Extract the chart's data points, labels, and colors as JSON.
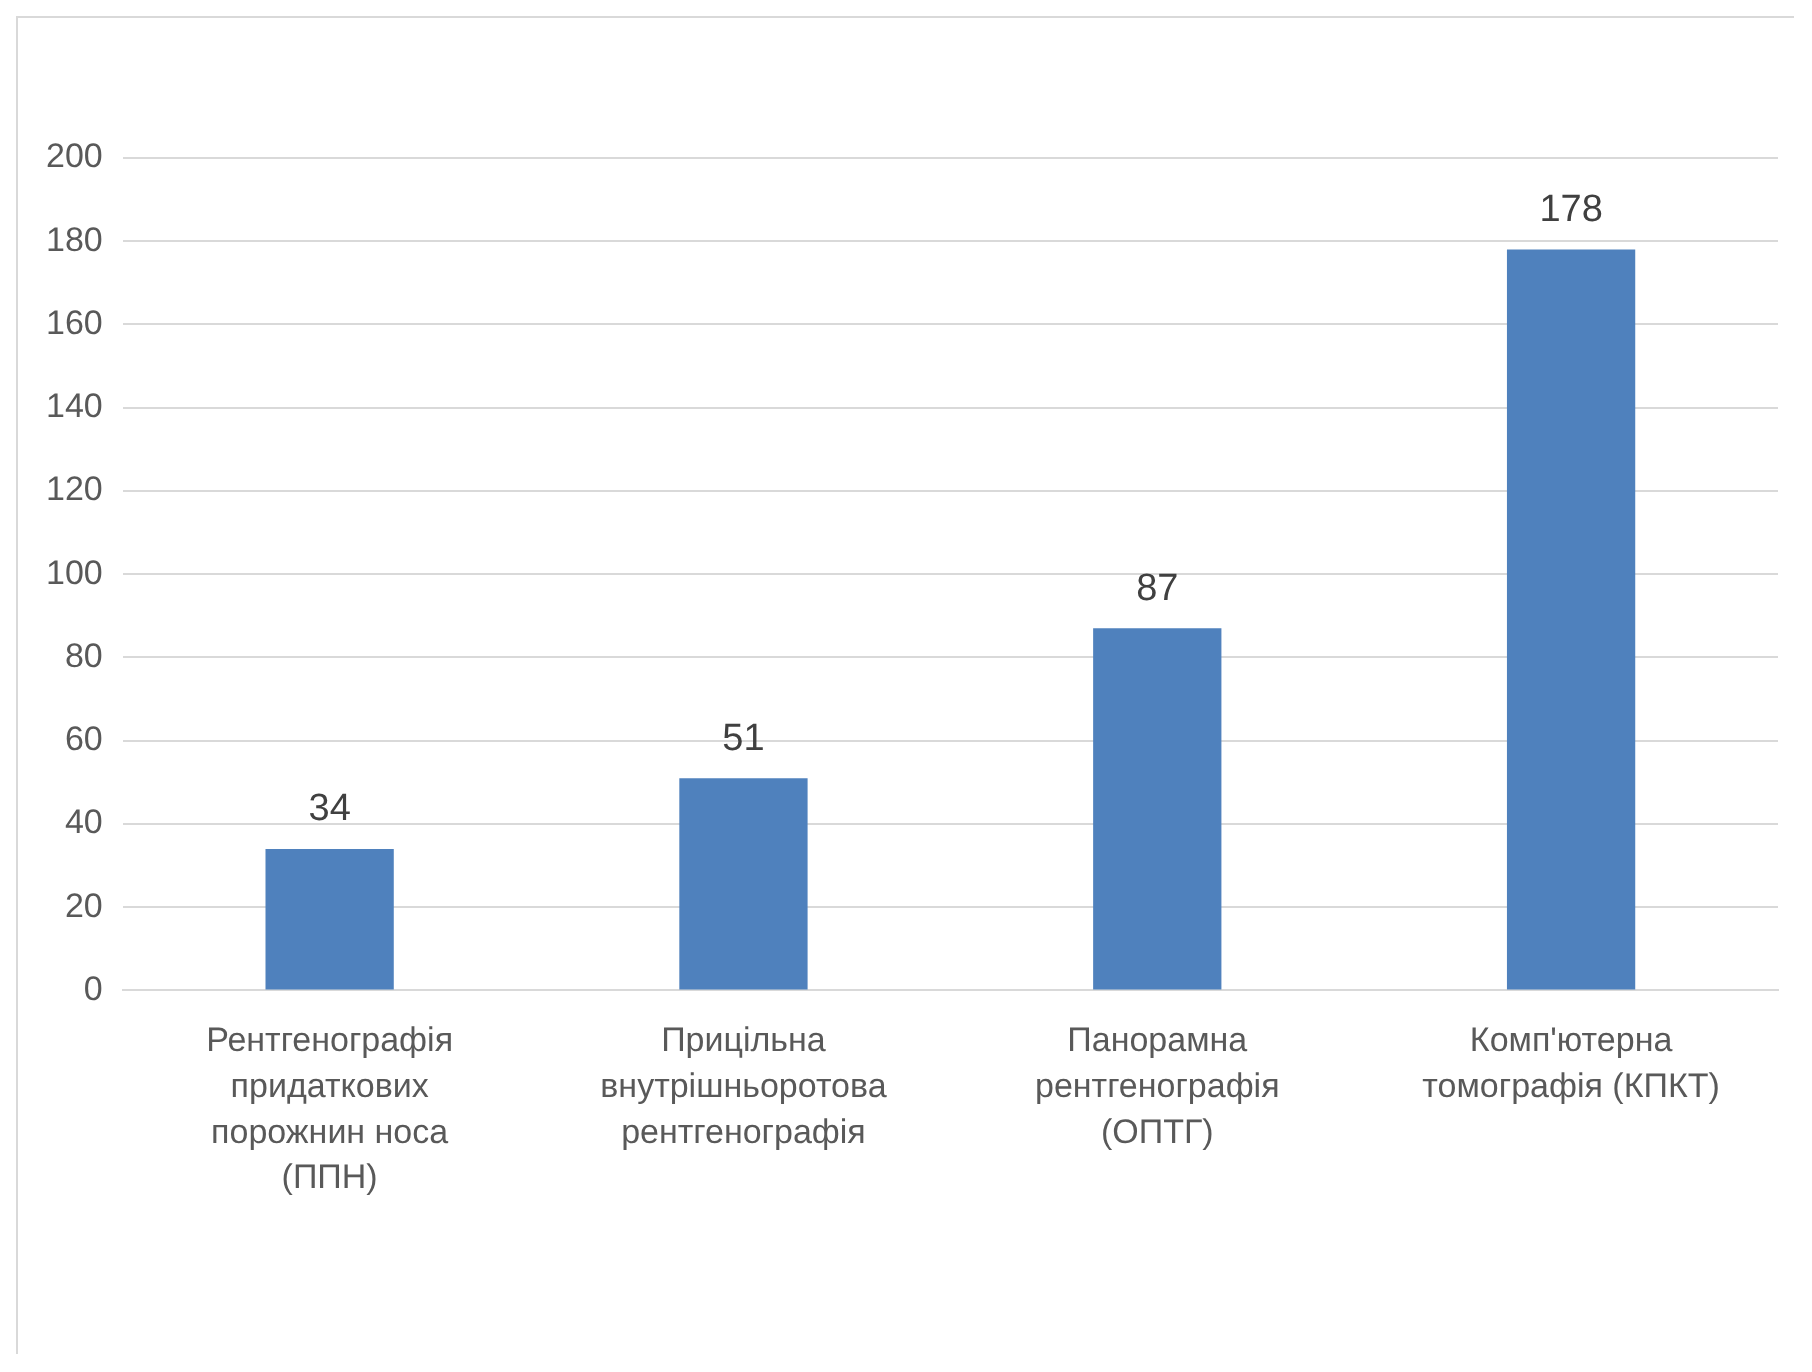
{
  "chart_data": {
    "type": "bar",
    "categories": [
      "Рентгенографія придаткових порожнин носа (ППН)",
      "Прицільна внутрішньоротова рентгенографія",
      "Панорамна рентгенографія (ОПТГ)",
      "Комп'ютерна томографія (КПКТ)"
    ],
    "values": [
      34,
      51,
      87,
      178
    ],
    "color": "#4f81bd",
    "ylim": [
      0,
      200
    ],
    "yticks": [
      0,
      20,
      40,
      60,
      80,
      100,
      120,
      140,
      160,
      180,
      200
    ],
    "grid": "y",
    "data_labels": true,
    "legend": false
  }
}
